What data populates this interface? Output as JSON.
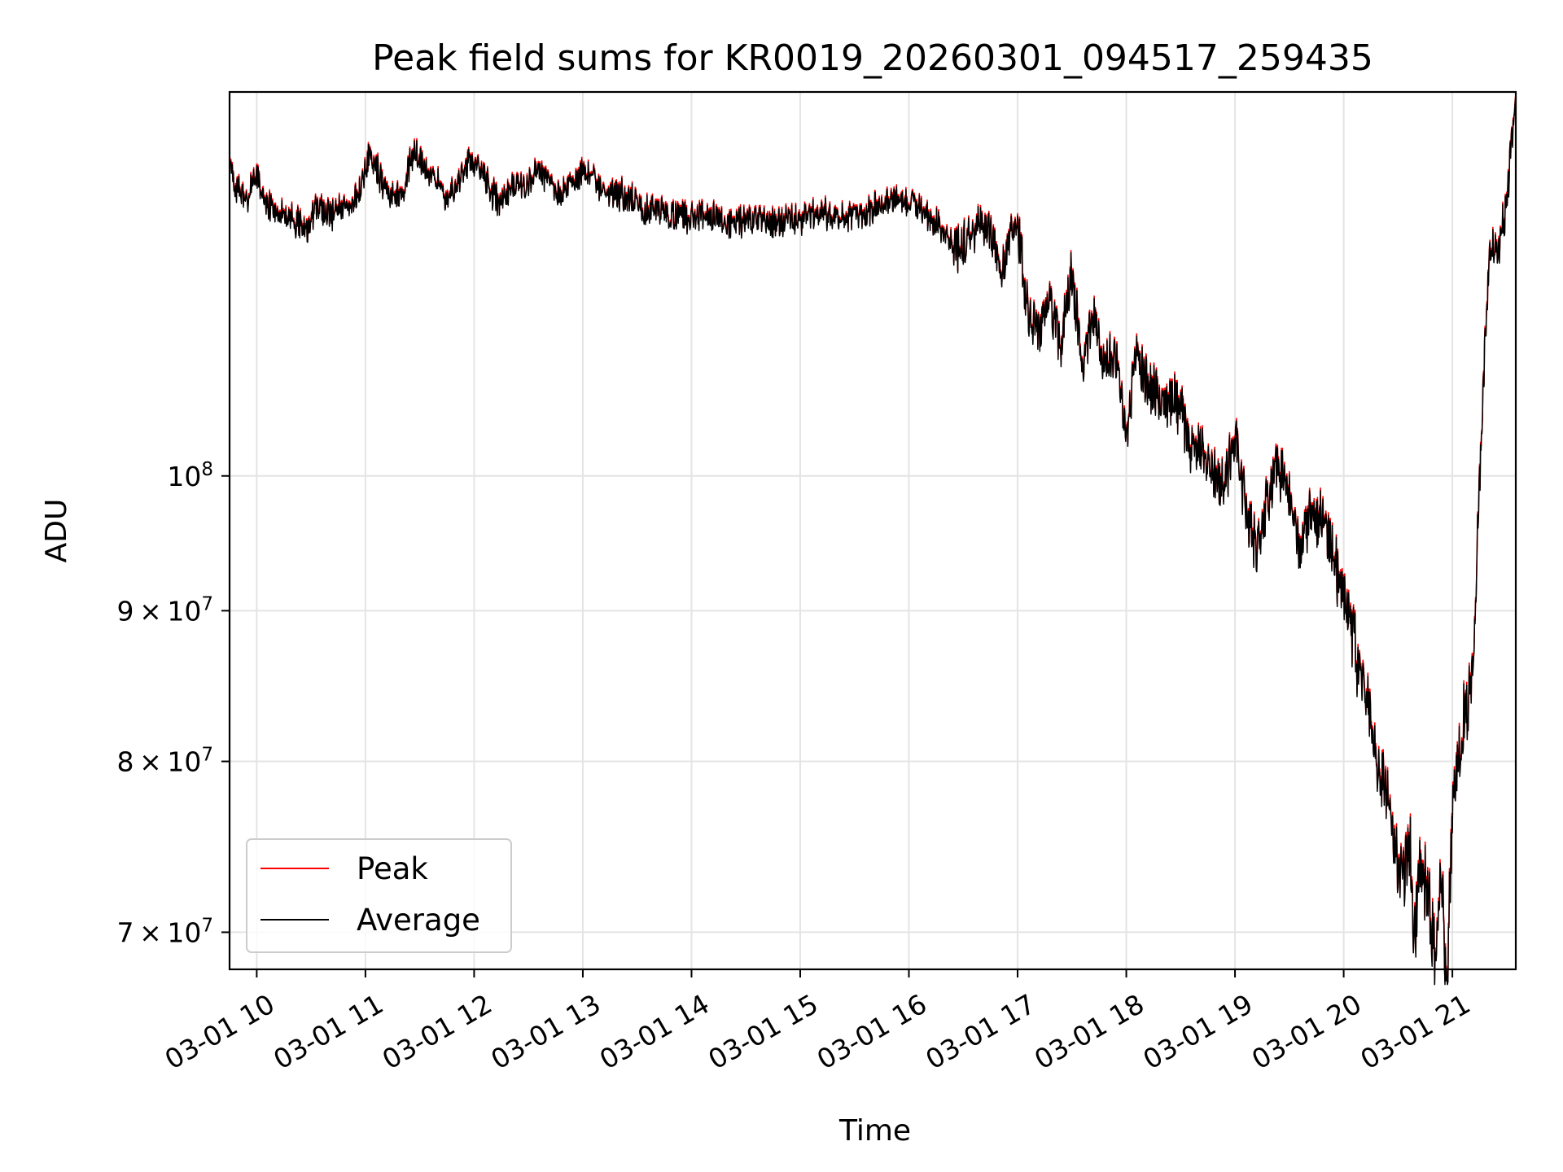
{
  "chart_data": {
    "type": "line",
    "title": "Peak field sums for KR0019_20260301_094517_259435",
    "xlabel": "Time",
    "ylabel": "ADU",
    "yscale": "log",
    "xlim": [
      "03-01 09:45",
      "03-01 21:35"
    ],
    "ylim": [
      68000000,
      135000000
    ],
    "x_ticks": [
      "03-01 10",
      "03-01 11",
      "03-01 12",
      "03-01 13",
      "03-01 14",
      "03-01 15",
      "03-01 16",
      "03-01 17",
      "03-01 18",
      "03-01 19",
      "03-01 20",
      "03-01 21"
    ],
    "y_ticks": [
      {
        "value": 70000000,
        "mantissa": "7",
        "exponent": "7"
      },
      {
        "value": 80000000,
        "mantissa": "8",
        "exponent": "7"
      },
      {
        "value": 90000000,
        "mantissa": "9",
        "exponent": "7"
      },
      {
        "value": 100000000,
        "mantissa": "",
        "exponent": "8"
      }
    ],
    "grid": true,
    "legend": {
      "position": "lower-left",
      "entries": [
        "Peak",
        "Average"
      ]
    },
    "series": [
      {
        "name": "Peak",
        "color": "#ff0000",
        "x_hours": [
          9.75,
          9.78,
          9.8,
          9.85,
          9.9,
          10.0,
          10.05,
          10.15,
          10.25,
          10.4,
          10.45,
          10.55,
          10.6,
          10.7,
          10.8,
          10.9,
          10.95,
          11.05,
          11.15,
          11.25,
          11.35,
          11.45,
          11.55,
          11.65,
          11.75,
          11.85,
          11.95,
          12.05,
          12.15,
          12.25,
          12.35,
          12.5,
          12.6,
          12.7,
          12.8,
          12.9,
          13.0,
          13.1,
          13.2,
          13.3,
          13.4,
          13.5,
          13.6,
          13.7,
          13.8,
          13.9,
          14.0,
          14.2,
          14.4,
          14.6,
          14.8,
          15.0,
          15.2,
          15.4,
          15.6,
          15.8,
          16.0,
          16.2,
          16.35,
          16.45,
          16.55,
          16.65,
          16.75,
          16.85,
          16.95,
          17.0,
          17.1,
          17.2,
          17.3,
          17.4,
          17.5,
          17.6,
          17.7,
          17.8,
          17.9,
          18.0,
          18.1,
          18.2,
          18.3,
          18.4,
          18.5,
          18.6,
          18.7,
          18.8,
          18.9,
          19.0,
          19.1,
          19.2,
          19.3,
          19.4,
          19.5,
          19.6,
          19.7,
          19.8,
          19.9,
          20.0,
          20.1,
          20.2,
          20.3,
          20.4,
          20.5,
          20.55,
          20.6,
          20.65,
          20.7,
          20.8,
          20.85,
          20.9,
          20.95,
          21.0,
          21.05,
          21.1,
          21.15,
          21.2,
          21.25,
          21.3,
          21.35,
          21.4,
          21.45,
          21.5,
          21.55,
          21.58
        ],
        "values": [
          128.5,
          126.5,
          125.5,
          125.0,
          124.0,
          127.0,
          124.5,
          123.5,
          123.0,
          122.0,
          121.5,
          123.5,
          123.0,
          123.0,
          123.5,
          124.0,
          125.0,
          129.0,
          126.0,
          124.5,
          125.0,
          129.5,
          127.0,
          126.5,
          124.5,
          125.5,
          128.0,
          127.5,
          125.0,
          124.0,
          125.5,
          126.0,
          127.0,
          126.0,
          124.5,
          126.0,
          127.0,
          126.0,
          125.0,
          125.0,
          124.5,
          124.0,
          123.0,
          123.5,
          122.5,
          123.0,
          122.5,
          122.5,
          122.0,
          122.5,
          122.0,
          122.5,
          123.0,
          122.5,
          123.0,
          124.0,
          124.0,
          122.5,
          120.5,
          119.5,
          120.5,
          122.0,
          121.0,
          117.0,
          121.0,
          121.5,
          113.5,
          112.5,
          114.5,
          111.5,
          117.5,
          109.0,
          114.0,
          109.5,
          110.0,
          104.0,
          110.0,
          107.0,
          106.5,
          106.5,
          105.5,
          102.0,
          103.0,
          100.0,
          99.5,
          103.0,
          98.0,
          94.5,
          98.5,
          101.0,
          99.0,
          94.5,
          97.5,
          97.0,
          94.5,
          91.0,
          87.5,
          84.5,
          80.5,
          78.0,
          74.5,
          73.0,
          76.0,
          70.0,
          74.0,
          71.5,
          68.5,
          73.0,
          67.5,
          76.5,
          80.0,
          83.0,
          84.5,
          87.5,
          99.0,
          111.0,
          120.0,
          119.0,
          121.0,
          124.0,
          131.0,
          134.5
        ]
      },
      {
        "name": "Average",
        "color": "#000000",
        "x_hours": [
          9.75,
          9.78,
          9.8,
          9.85,
          9.9,
          10.0,
          10.05,
          10.15,
          10.25,
          10.4,
          10.45,
          10.55,
          10.6,
          10.7,
          10.8,
          10.9,
          10.95,
          11.05,
          11.15,
          11.25,
          11.35,
          11.45,
          11.55,
          11.65,
          11.75,
          11.85,
          11.95,
          12.05,
          12.15,
          12.25,
          12.35,
          12.5,
          12.6,
          12.7,
          12.8,
          12.9,
          13.0,
          13.1,
          13.2,
          13.3,
          13.4,
          13.5,
          13.6,
          13.7,
          13.8,
          13.9,
          14.0,
          14.2,
          14.4,
          14.6,
          14.8,
          15.0,
          15.2,
          15.4,
          15.6,
          15.8,
          16.0,
          16.2,
          16.35,
          16.45,
          16.55,
          16.65,
          16.75,
          16.85,
          16.95,
          17.0,
          17.1,
          17.2,
          17.3,
          17.4,
          17.5,
          17.6,
          17.7,
          17.8,
          17.9,
          18.0,
          18.1,
          18.2,
          18.3,
          18.4,
          18.5,
          18.6,
          18.7,
          18.8,
          18.9,
          19.0,
          19.1,
          19.2,
          19.3,
          19.4,
          19.5,
          19.6,
          19.7,
          19.8,
          19.9,
          20.0,
          20.1,
          20.2,
          20.3,
          20.4,
          20.5,
          20.55,
          20.6,
          20.65,
          20.7,
          20.8,
          20.85,
          20.9,
          20.95,
          21.0,
          21.05,
          21.1,
          21.15,
          21.2,
          21.25,
          21.3,
          21.35,
          21.4,
          21.45,
          21.5,
          21.55,
          21.58
        ],
        "values": [
          128.3,
          126.3,
          125.3,
          124.8,
          123.8,
          126.8,
          124.3,
          123.3,
          122.8,
          121.8,
          121.3,
          123.3,
          122.8,
          122.8,
          123.3,
          123.8,
          124.8,
          128.8,
          125.8,
          124.3,
          124.8,
          129.3,
          126.8,
          126.3,
          124.3,
          125.3,
          127.8,
          127.3,
          124.8,
          123.8,
          125.3,
          125.8,
          126.8,
          125.8,
          124.3,
          125.8,
          126.8,
          125.8,
          124.8,
          124.8,
          124.3,
          123.8,
          122.8,
          123.3,
          122.3,
          122.8,
          122.3,
          122.3,
          121.8,
          122.3,
          121.8,
          122.3,
          122.8,
          122.3,
          122.8,
          123.8,
          123.8,
          122.3,
          120.3,
          119.3,
          120.3,
          121.8,
          120.8,
          116.8,
          120.8,
          121.3,
          113.3,
          112.3,
          114.3,
          111.3,
          117.3,
          108.8,
          113.8,
          109.3,
          109.8,
          103.8,
          109.8,
          106.8,
          106.3,
          106.3,
          105.3,
          101.8,
          102.8,
          99.8,
          99.3,
          102.8,
          97.8,
          94.3,
          98.3,
          100.8,
          98.8,
          94.3,
          97.3,
          96.8,
          94.3,
          90.8,
          87.3,
          84.3,
          80.3,
          77.8,
          74.3,
          72.8,
          75.8,
          69.8,
          73.8,
          71.3,
          68.3,
          72.8,
          67.3,
          76.3,
          79.8,
          82.8,
          84.3,
          87.3,
          98.8,
          110.8,
          119.8,
          118.8,
          120.8,
          123.8,
          130.8,
          134.3
        ]
      }
    ]
  }
}
